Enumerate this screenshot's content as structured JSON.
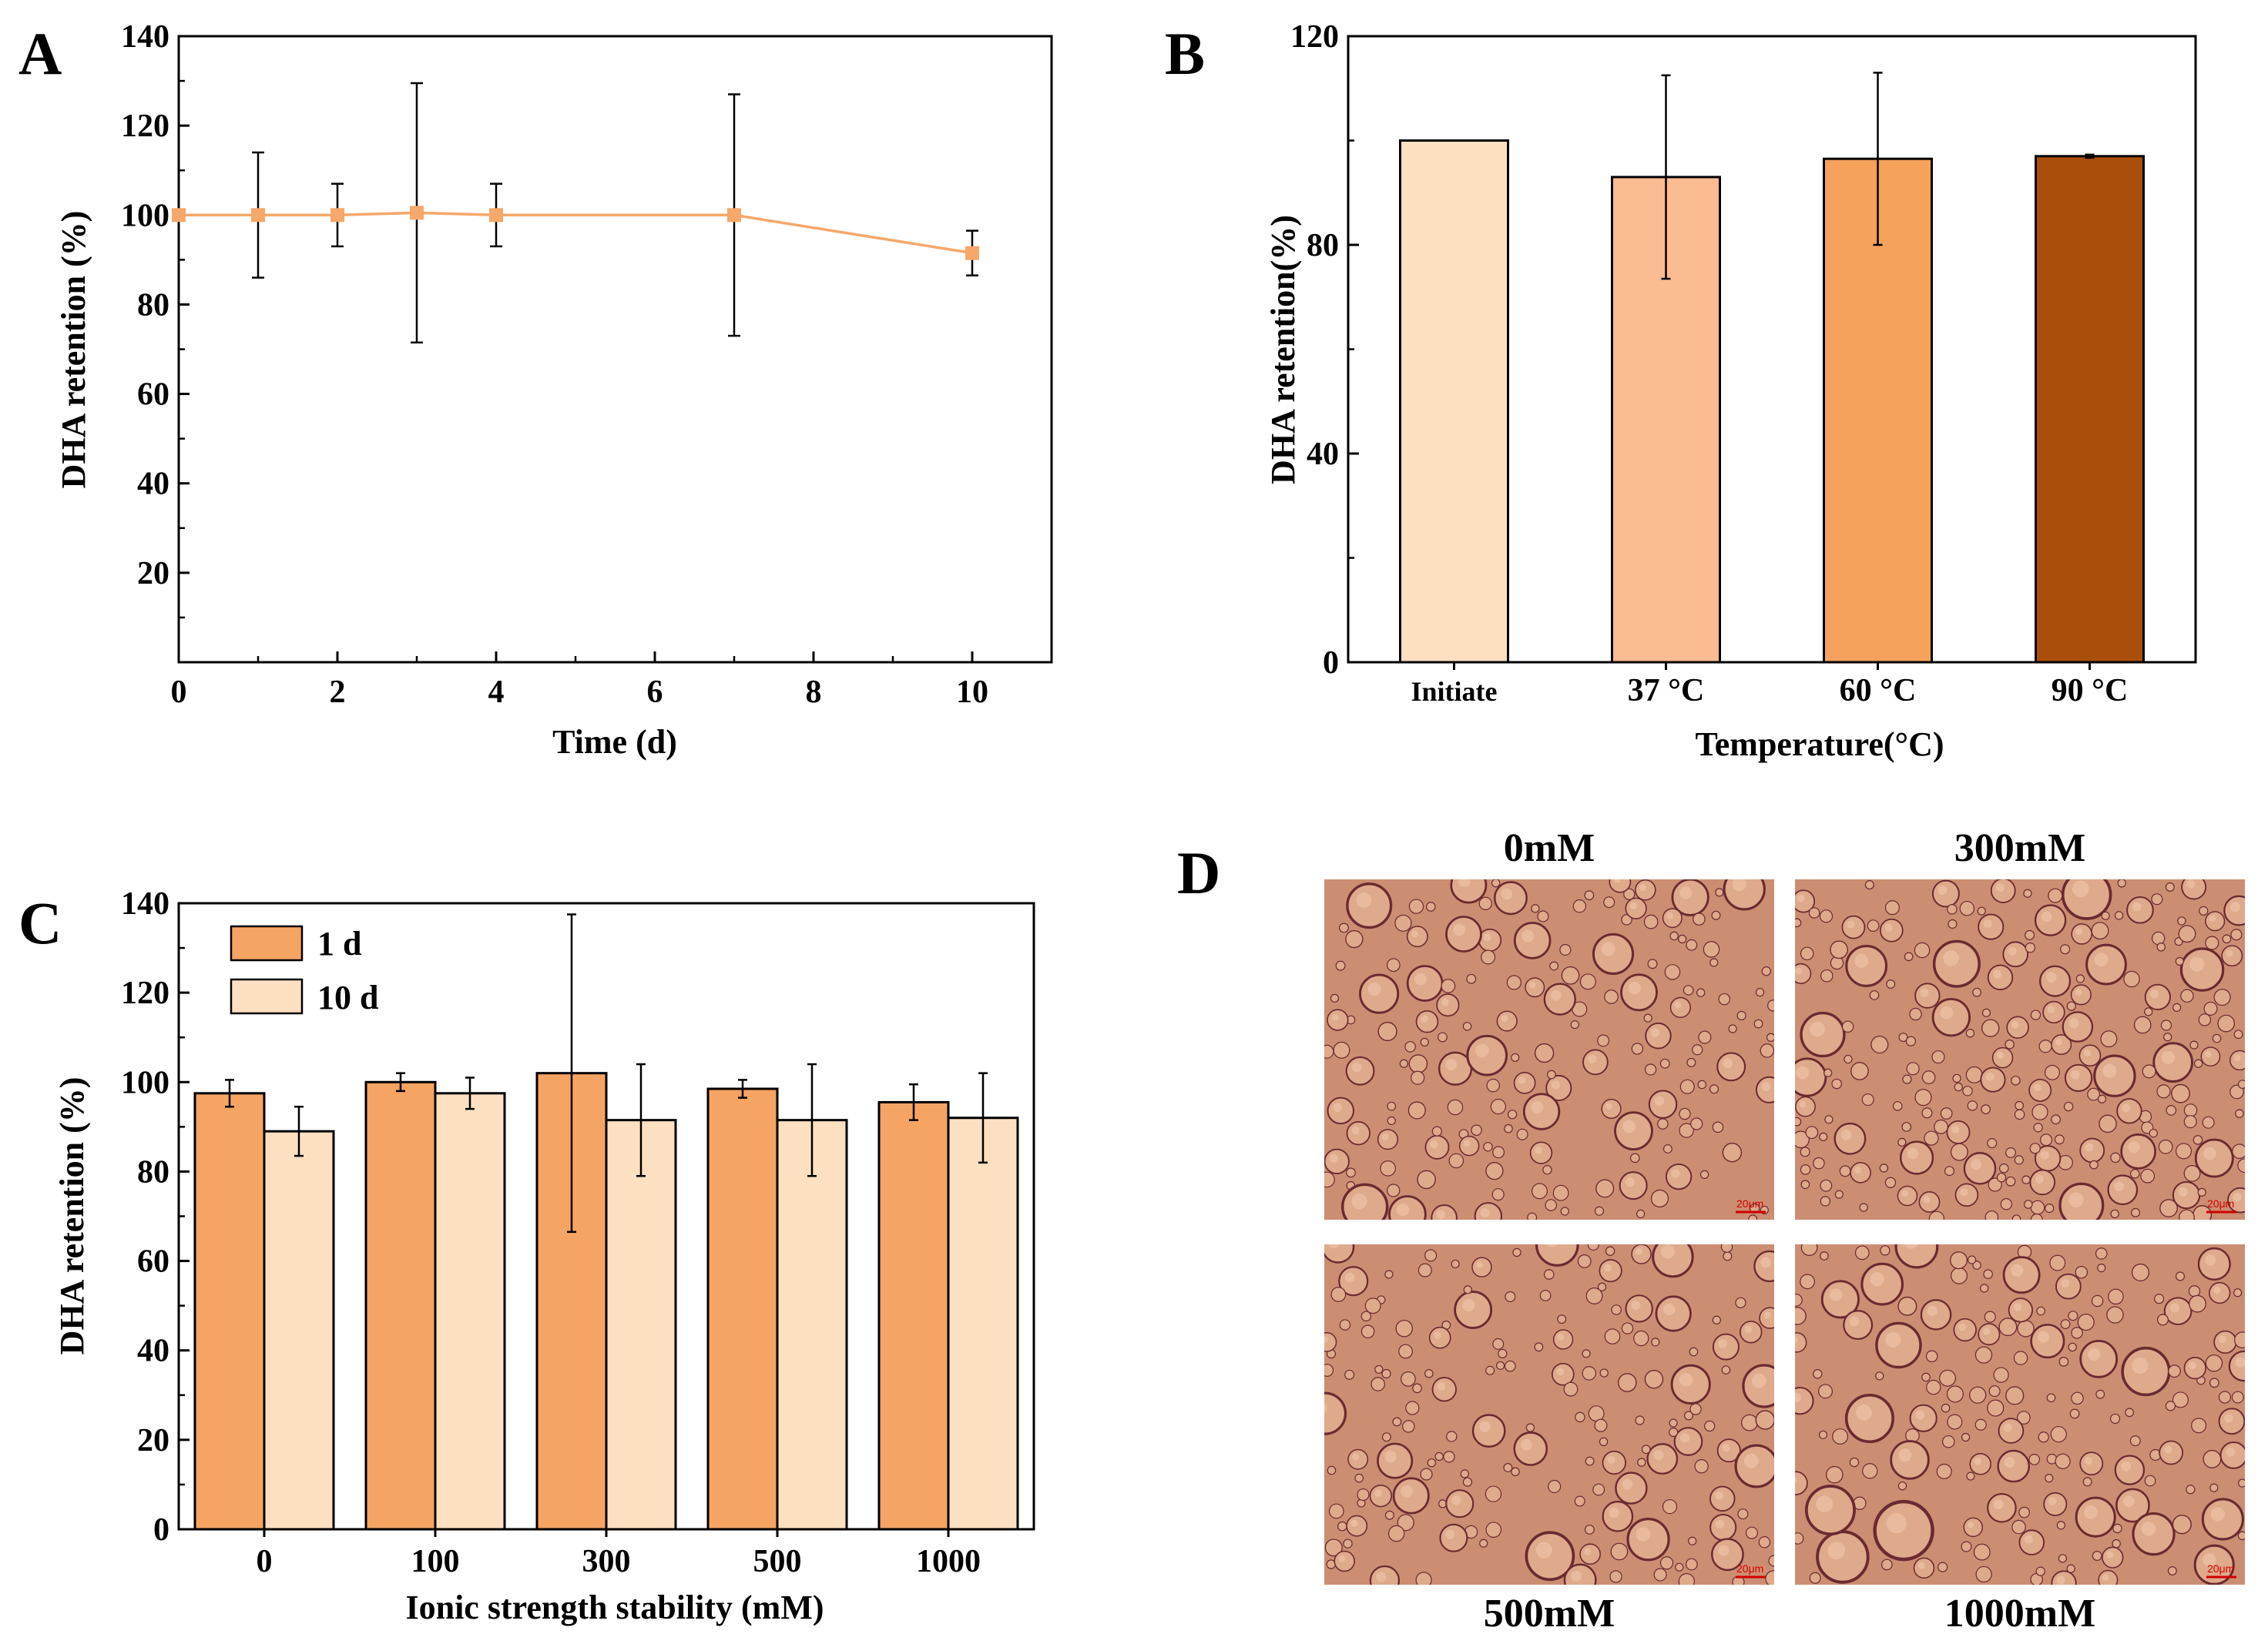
{
  "colors": {
    "lineA": "#f5a86a",
    "markerA": "#f5a86a",
    "initiate": "#fde0c2",
    "t37": "#fbbb93",
    "t60": "#f5a25c",
    "t90": "#a94f0b",
    "d1": "#f5a463",
    "d10": "#fde0c2",
    "micrograph_bg": "#cc8e72",
    "droplet_fill": "#dfa98b",
    "droplet_edge": "#6a2a30"
  },
  "chart_data": [
    {
      "panel": "A",
      "type": "line",
      "xlabel": "Time (d)",
      "ylabel": "DHA retention (%)",
      "xlim": [
        0,
        11
      ],
      "ylim": [
        0,
        140
      ],
      "xticks": [
        0,
        2,
        4,
        6,
        8,
        10
      ],
      "xtick_labels": [
        "0",
        "2",
        "4",
        "6",
        "8",
        "10"
      ],
      "yticks": [
        20,
        40,
        60,
        80,
        100,
        120,
        140
      ],
      "ytick_labels": [
        "20",
        "40",
        "60",
        "80",
        "100",
        "120",
        "140"
      ],
      "x": [
        0,
        1,
        2,
        3,
        4,
        7,
        10
      ],
      "y": [
        100,
        100,
        100,
        100.5,
        100,
        100,
        91.5
      ],
      "err": [
        0,
        14,
        7,
        29,
        7,
        27,
        5
      ],
      "grid": false
    },
    {
      "panel": "B",
      "type": "bar",
      "xlabel": "Temperature(°C)",
      "ylabel": "DHA retention(%)",
      "ylim": [
        0,
        120
      ],
      "yticks": [
        0,
        40,
        80,
        120
      ],
      "ytick_labels": [
        "0",
        "40",
        "80",
        "120"
      ],
      "categories": [
        "Initiate",
        "37 °C",
        "60 °C",
        "90 °C"
      ],
      "values": [
        100,
        93,
        96.5,
        97
      ],
      "err": [
        0,
        19.5,
        16.5,
        0.3
      ],
      "grid": false
    },
    {
      "panel": "C",
      "type": "bar",
      "xlabel": "Ionic strength stability (mM)",
      "ylabel": "DHA retention (%)",
      "ylim": [
        0,
        140
      ],
      "yticks": [
        0,
        20,
        40,
        60,
        80,
        100,
        120,
        140
      ],
      "ytick_labels": [
        "0",
        "20",
        "40",
        "60",
        "80",
        "100",
        "120",
        "140"
      ],
      "categories": [
        "0",
        "100",
        "300",
        "500",
        "1000"
      ],
      "series": [
        {
          "name": "1 d",
          "values": [
            97.5,
            100,
            102,
            98.5,
            95.5
          ],
          "err": [
            3,
            2,
            35.5,
            2,
            4
          ]
        },
        {
          "name": "10 d",
          "values": [
            89,
            97.5,
            91.5,
            91.5,
            92
          ],
          "err": [
            5.5,
            3.5,
            12.5,
            12.5,
            10
          ]
        }
      ],
      "legend": "top-left",
      "grid": false
    }
  ],
  "panels": {
    "a": "A",
    "b": "B",
    "c": "C",
    "d": "D"
  },
  "micrographs": [
    {
      "label": "0mM",
      "scale": "20μm"
    },
    {
      "label": "300mM",
      "scale": "20μm"
    },
    {
      "label": "500mM",
      "scale": "20μm"
    },
    {
      "label": "1000mM",
      "scale": "20μm"
    }
  ]
}
